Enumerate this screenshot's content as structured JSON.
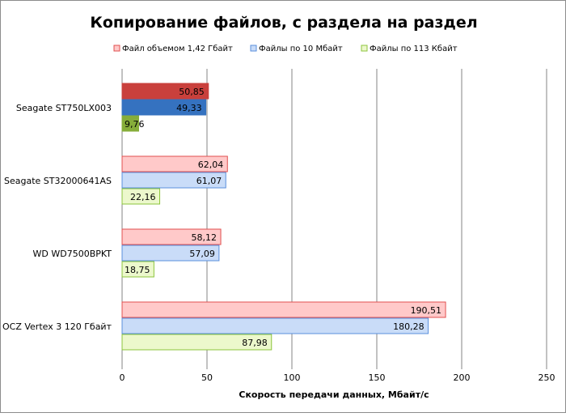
{
  "chart_data": {
    "type": "bar",
    "orientation": "horizontal",
    "title": "Копирование файлов, с раздела на раздел",
    "xlabel": "Скорость  передачи данных, Мбайт/с",
    "ylabel": "",
    "xlim": [
      0,
      250
    ],
    "xticks": [
      "0",
      "50",
      "100",
      "150",
      "200",
      "250"
    ],
    "grid": true,
    "legend_position": "top",
    "categories": [
      "Seagate ST750LX003",
      "Seagate ST32000641AS",
      "WD WD7500BPKT",
      "OCZ Vertex  3 120 Гбайт"
    ],
    "series": [
      {
        "name": "Файл объемом 1,42 Гбайт",
        "values": [
          50.85,
          62.04,
          58.12,
          190.51
        ],
        "labels": [
          "50,85",
          "62,04",
          "58,12",
          "190,51"
        ],
        "color": "#ffc9c9",
        "border": "#e05050",
        "highlight": "#c9403c"
      },
      {
        "name": "Файлы по 10 Мбайт",
        "values": [
          49.33,
          61.07,
          57.09,
          180.28
        ],
        "labels": [
          "49,33",
          "61,07",
          "57,09",
          "180,28"
        ],
        "color": "#c9dcf8",
        "border": "#5a8fdc",
        "highlight": "#3572c0"
      },
      {
        "name": "Файлы по 113 Кбайт",
        "values": [
          9.76,
          22.16,
          18.75,
          87.98
        ],
        "labels": [
          "9,76",
          "22,16",
          "18,75",
          "87,98"
        ],
        "color": "#ecf8cc",
        "border": "#8cc43c",
        "highlight": "#86ad3a"
      }
    ],
    "highlighted_category": "Seagate ST750LX003"
  }
}
